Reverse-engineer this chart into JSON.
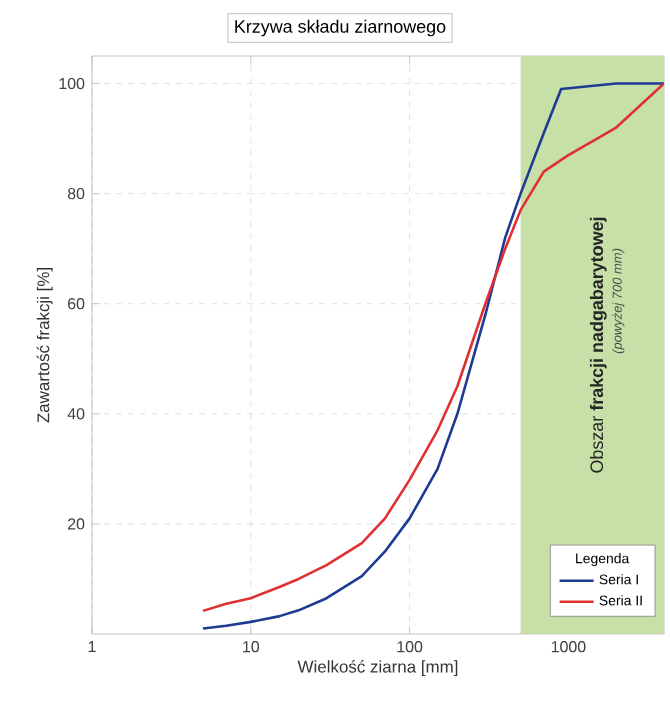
{
  "chart_data": {
    "type": "line",
    "title": "Krzywa składu ziarnowego",
    "xlabel": "Wielkość ziarna [mm]",
    "ylabel": "Zawartość frakcji [%]",
    "legend_title": "Legenda",
    "log": "x",
    "xlim": [
      1,
      4000
    ],
    "xticks": [
      1,
      10,
      100,
      1000
    ],
    "ylim": [
      0,
      105
    ],
    "yticks": [
      20,
      40,
      60,
      80,
      100
    ],
    "grid": true,
    "legend": "bottom right",
    "series": [
      {
        "name": "Seria I",
        "color": "#1f3a93",
        "x": [
          5,
          7,
          10,
          15,
          20,
          30,
          50,
          70,
          100,
          150,
          200,
          300,
          400,
          500,
          700,
          900,
          2000,
          4000
        ],
        "values": [
          1,
          1.5,
          2.2,
          3.2,
          4.3,
          6.5,
          10.5,
          15,
          21,
          30,
          40,
          58,
          72,
          80,
          91,
          99,
          100,
          100
        ]
      },
      {
        "name": "Seria II",
        "color": "#e03030",
        "x": [
          5,
          7,
          10,
          15,
          20,
          30,
          50,
          70,
          100,
          150,
          200,
          300,
          400,
          500,
          700,
          1000,
          2000,
          4000
        ],
        "values": [
          4.2,
          5.5,
          6.5,
          8.5,
          10,
          12.5,
          16.5,
          21,
          28,
          37,
          45,
          60,
          70,
          77,
          84,
          87,
          92,
          100
        ]
      }
    ],
    "bands": [
      {
        "axis": "x",
        "from": 500,
        "to": 4000,
        "label": "Obszar **frakcji nadgabarytowej**",
        "color": "#c6e0a8"
      }
    ],
    "annotations": [
      "(powyżej 700 mm)"
    ]
  }
}
